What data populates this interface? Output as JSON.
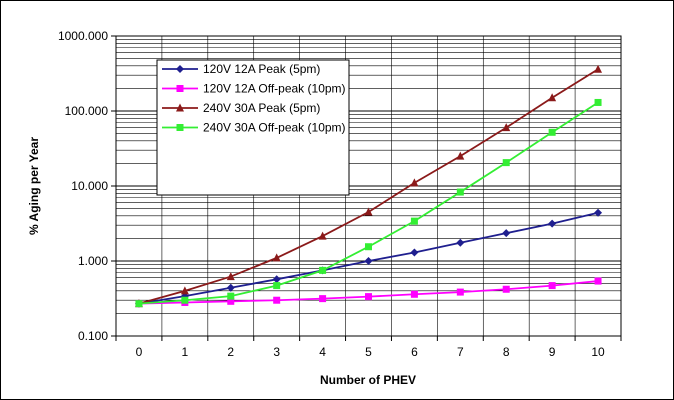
{
  "chart_data": {
    "type": "line",
    "title": "",
    "xlabel": "Number of PHEV",
    "ylabel": "% Aging per Year",
    "y_scale": "log",
    "ylim": [
      0.1,
      1000
    ],
    "xlim": [
      0,
      10
    ],
    "x_ticks": [
      "0",
      "1",
      "2",
      "3",
      "4",
      "5",
      "6",
      "7",
      "8",
      "9",
      "10"
    ],
    "y_ticks": [
      "0.100",
      "1.000",
      "10.000",
      "100.000",
      "1000.000"
    ],
    "grid": true,
    "legend_position": "top-left",
    "x": [
      0,
      1,
      2,
      3,
      4,
      5,
      6,
      7,
      8,
      9,
      10
    ],
    "series": [
      {
        "name": "120V 12A Peak (5pm)",
        "color": "#1f1f8f",
        "marker": "diamond",
        "values": [
          0.27,
          0.34,
          0.44,
          0.57,
          0.75,
          1.0,
          1.3,
          1.75,
          2.35,
          3.15,
          4.4
        ]
      },
      {
        "name": "120V 12A Off-peak (10pm)",
        "color": "#ff00ff",
        "marker": "square",
        "values": [
          0.27,
          0.28,
          0.29,
          0.3,
          0.315,
          0.335,
          0.36,
          0.385,
          0.42,
          0.47,
          0.54
        ]
      },
      {
        "name": "240V 30A Peak (5pm)",
        "color": "#8b1a1a",
        "marker": "triangle",
        "values": [
          0.27,
          0.4,
          0.62,
          1.1,
          2.15,
          4.5,
          11,
          25,
          60,
          150,
          360
        ]
      },
      {
        "name": "240V 30A Off-peak (10pm)",
        "color": "#33ee33",
        "marker": "square",
        "values": [
          0.27,
          0.3,
          0.34,
          0.47,
          0.75,
          1.55,
          3.4,
          8.3,
          20.5,
          52,
          130
        ]
      }
    ]
  }
}
